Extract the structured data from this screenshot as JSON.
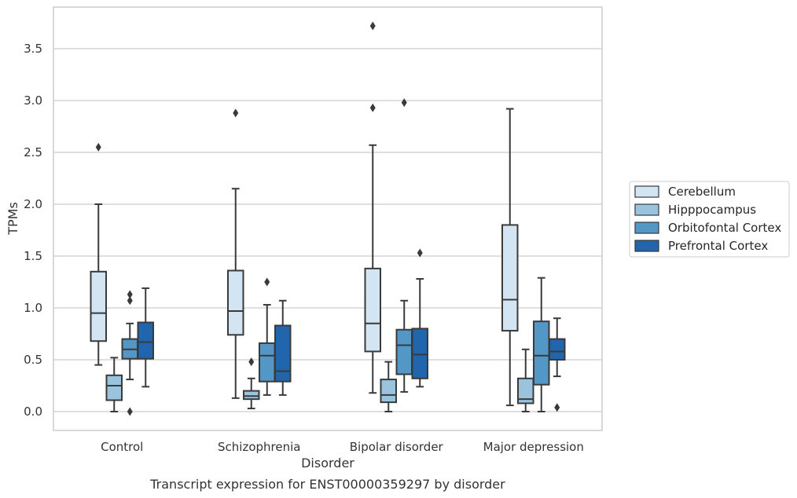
{
  "caption": "Transcript expression for ENST00000359297 by disorder",
  "chart_data": {
    "type": "boxplot",
    "title": "",
    "xlabel": "Disorder",
    "ylabel": "TPMs",
    "ylim": [
      -0.18,
      3.9
    ],
    "yticks": [
      "0.0",
      "0.5",
      "1.0",
      "1.5",
      "2.0",
      "2.5",
      "3.0",
      "3.5"
    ],
    "grid": "horizontal",
    "legend_position": "right",
    "categories": [
      "Control",
      "Schizophrenia",
      "Bipolar disorder",
      "Major depression"
    ],
    "series": [
      {
        "name": "Cerebellum",
        "color": "#d3e4f3",
        "boxes": [
          {
            "whislo": 0.45,
            "q1": 0.68,
            "med": 0.95,
            "q3": 1.35,
            "whishi": 2.0,
            "fliers": [
              2.55
            ]
          },
          {
            "whislo": 0.13,
            "q1": 0.74,
            "med": 0.97,
            "q3": 1.36,
            "whishi": 2.15,
            "fliers": [
              2.88
            ]
          },
          {
            "whislo": 0.18,
            "q1": 0.58,
            "med": 0.85,
            "q3": 1.38,
            "whishi": 2.57,
            "fliers": [
              2.93,
              3.72
            ]
          },
          {
            "whislo": 0.06,
            "q1": 0.78,
            "med": 1.08,
            "q3": 1.8,
            "whishi": 2.92,
            "fliers": []
          }
        ]
      },
      {
        "name": "Hipppocampus",
        "color": "#9ac4de",
        "boxes": [
          {
            "whislo": 0.0,
            "q1": 0.11,
            "med": 0.25,
            "q3": 0.35,
            "whishi": 0.52,
            "fliers": []
          },
          {
            "whislo": 0.03,
            "q1": 0.12,
            "med": 0.15,
            "q3": 0.2,
            "whishi": 0.32,
            "fliers": [
              0.48
            ]
          },
          {
            "whislo": 0.0,
            "q1": 0.09,
            "med": 0.16,
            "q3": 0.31,
            "whishi": 0.48,
            "fliers": []
          },
          {
            "whislo": 0.0,
            "q1": 0.08,
            "med": 0.12,
            "q3": 0.32,
            "whishi": 0.6,
            "fliers": []
          }
        ]
      },
      {
        "name": "Orbitofontal Cortex",
        "color": "#5297c6",
        "boxes": [
          {
            "whislo": 0.31,
            "q1": 0.51,
            "med": 0.6,
            "q3": 0.7,
            "whishi": 0.85,
            "fliers": [
              0.0,
              1.07,
              1.13
            ]
          },
          {
            "whislo": 0.16,
            "q1": 0.29,
            "med": 0.54,
            "q3": 0.66,
            "whishi": 1.03,
            "fliers": [
              1.25
            ]
          },
          {
            "whislo": 0.19,
            "q1": 0.36,
            "med": 0.64,
            "q3": 0.79,
            "whishi": 1.07,
            "fliers": [
              2.98
            ]
          },
          {
            "whislo": 0.0,
            "q1": 0.26,
            "med": 0.54,
            "q3": 0.87,
            "whishi": 1.29,
            "fliers": []
          }
        ]
      },
      {
        "name": "Prefrontal Cortex",
        "color": "#2166ac",
        "boxes": [
          {
            "whislo": 0.24,
            "q1": 0.51,
            "med": 0.67,
            "q3": 0.86,
            "whishi": 1.19,
            "fliers": []
          },
          {
            "whislo": 0.16,
            "q1": 0.29,
            "med": 0.39,
            "q3": 0.83,
            "whishi": 1.07,
            "fliers": []
          },
          {
            "whislo": 0.24,
            "q1": 0.32,
            "med": 0.55,
            "q3": 0.8,
            "whishi": 1.28,
            "fliers": [
              1.53
            ]
          },
          {
            "whislo": 0.34,
            "q1": 0.5,
            "med": 0.58,
            "q3": 0.7,
            "whishi": 0.9,
            "fliers": [
              0.04
            ]
          }
        ]
      }
    ]
  }
}
